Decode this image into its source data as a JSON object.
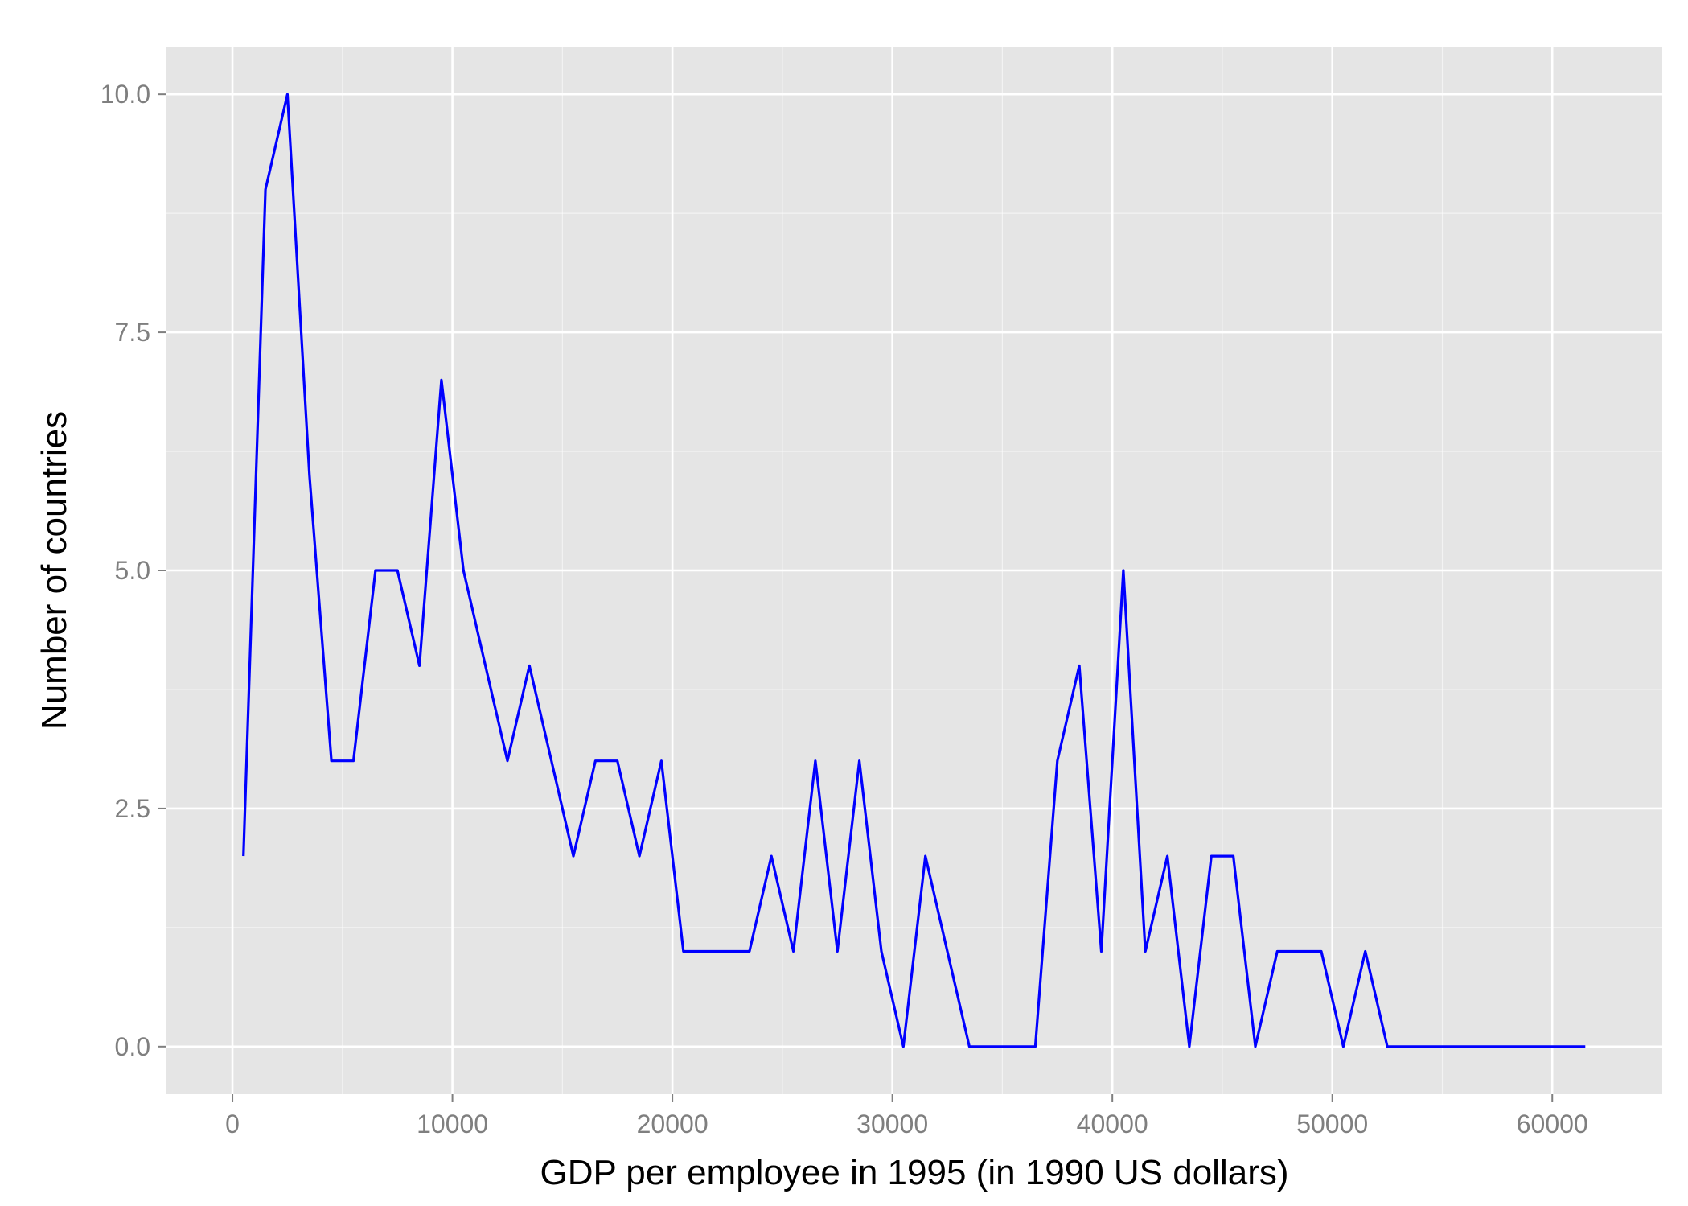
{
  "chart_data": {
    "type": "line",
    "title": "",
    "xlabel": "GDP per employee in 1995 (in 1990 US dollars)",
    "ylabel": "Number of countries",
    "xlim": [
      -3000,
      65000
    ],
    "ylim": [
      -0.5,
      10.5
    ],
    "x_ticks": [
      0,
      10000,
      20000,
      30000,
      40000,
      50000,
      60000
    ],
    "x_tick_labels": [
      "0",
      "10000",
      "20000",
      "30000",
      "40000",
      "50000",
      "60000"
    ],
    "y_ticks": [
      0,
      2.5,
      5,
      7.5,
      10
    ],
    "y_tick_labels": [
      "0.0",
      "2.5",
      "5.0",
      "7.5",
      "10.0"
    ],
    "grid": true,
    "colors": {
      "panel": "#e5e5e5",
      "grid": "#ffffff",
      "line": "#0000ff"
    },
    "series": [
      {
        "x": [
          500,
          1500,
          2500,
          3500,
          4500,
          5500,
          6500,
          7500,
          8500,
          9500,
          10500,
          11500,
          12500,
          13500,
          14500,
          15500,
          16500,
          17500,
          18500,
          19500,
          20500,
          21500,
          22500,
          23500,
          24500,
          25500,
          26500,
          27500,
          28500,
          29500,
          30500,
          31500,
          32500,
          33500,
          34500,
          35500,
          36500,
          37500,
          38500,
          39500,
          40500,
          41500,
          42500,
          43500,
          44500,
          45500,
          46500,
          47500,
          48500,
          49500,
          50500,
          51500,
          52500,
          53500,
          54500,
          55500,
          56500,
          57500,
          58500,
          59500,
          60500,
          61500
        ],
        "values": [
          2,
          9,
          10,
          6,
          3,
          3,
          5,
          5,
          4,
          7,
          5,
          4,
          3,
          4,
          3,
          2,
          3,
          3,
          2,
          3,
          1,
          1,
          1,
          1,
          2,
          1,
          3,
          1,
          3,
          1,
          0,
          2,
          1,
          0,
          0,
          0,
          0,
          3,
          4,
          1,
          5,
          1,
          2,
          0,
          2,
          2,
          0,
          1,
          1,
          1,
          0,
          1,
          0,
          0,
          0,
          0,
          0,
          0,
          0,
          0,
          0,
          0
        ]
      }
    ]
  }
}
